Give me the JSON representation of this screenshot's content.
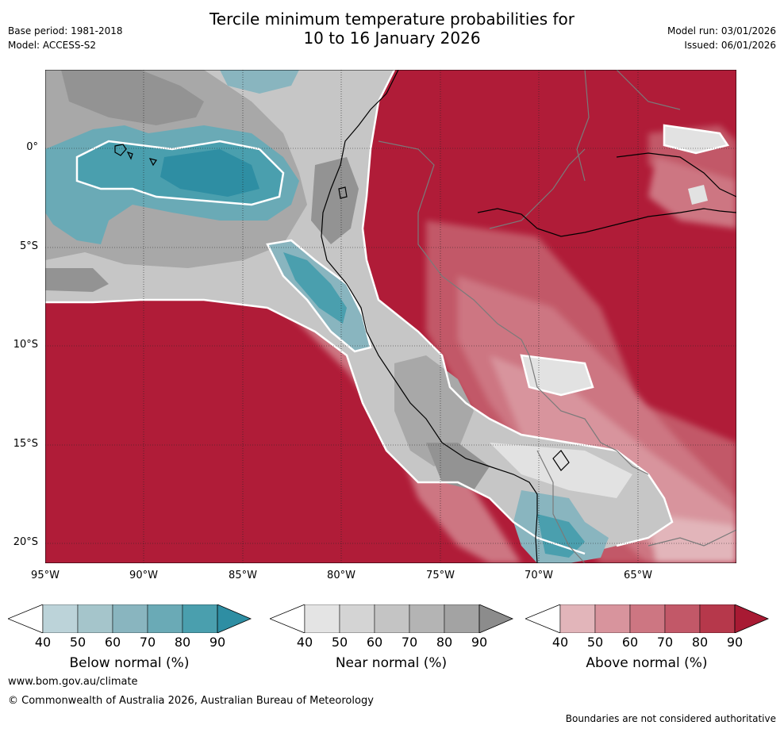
{
  "header": {
    "title_line1": "Tercile minimum temperature probabilities for",
    "title_line2": "10 to 16 January 2026",
    "base_period": "Base period: 1981-2018",
    "model": "Model: ACCESS-S2",
    "model_run": "Model run: 03/01/2026",
    "issued": "Issued: 06/01/2026"
  },
  "map": {
    "lat_labels": [
      "0°",
      "5°S",
      "10°S",
      "15°S",
      "20°S"
    ],
    "lon_labels": [
      "95°W",
      "90°W",
      "85°W",
      "80°W",
      "75°W",
      "70°W",
      "65°W"
    ]
  },
  "legends": [
    {
      "name": "below",
      "title": "Below normal (%)",
      "ticks": [
        "40",
        "50",
        "60",
        "70",
        "80",
        "90"
      ],
      "colors": [
        "#bcd3d9",
        "#a5c5cb",
        "#89b5bf",
        "#6aaab6",
        "#4a9fae",
        "#2e8ea3"
      ]
    },
    {
      "name": "near",
      "title": "Near normal (%)",
      "ticks": [
        "40",
        "50",
        "60",
        "70",
        "80",
        "90"
      ],
      "colors": [
        "#e4e4e4",
        "#d4d4d4",
        "#c4c4c4",
        "#b4b4b4",
        "#a3a3a3",
        "#8c8c8c"
      ]
    },
    {
      "name": "above",
      "title": "Above normal (%)",
      "ticks": [
        "40",
        "50",
        "60",
        "70",
        "80",
        "90"
      ],
      "colors": [
        "#e2b5ba",
        "#d8949d",
        "#cd7682",
        "#c25868",
        "#b6384b",
        "#a81a33"
      ]
    }
  ],
  "footer": {
    "website": "www.bom.gov.au/climate",
    "copyright": "© Commonwealth of Australia 2026, Australian Bureau of Meteorology",
    "disclaimer": "Boundaries are not considered authoritative"
  }
}
